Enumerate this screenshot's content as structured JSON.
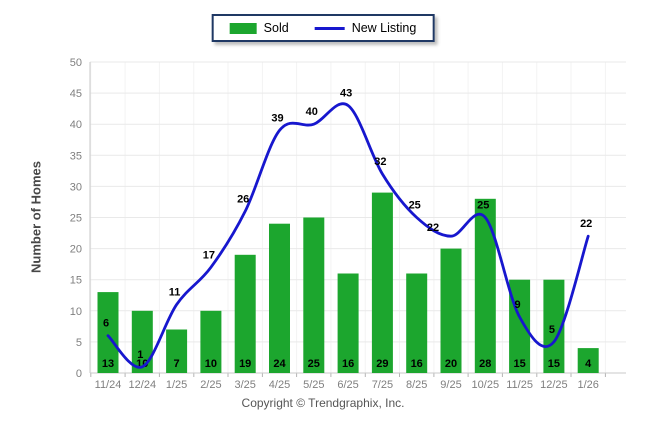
{
  "legend": {
    "sold_label": "Sold",
    "new_listing_label": "New Listing",
    "border_color": "#1F3864"
  },
  "footer": {
    "copyright": "Copyright © Trendgraphix, Inc."
  },
  "colors": {
    "bar": "#1CA62E",
    "line": "#1717CE",
    "gridline": "#E9E9E9",
    "gridline_vertical": "#F3F3F3",
    "axis_line": "#C9C9C9",
    "tick_mark": "#B5B5B5",
    "tick_text": "#7F7F7F",
    "data_label": "#000000"
  },
  "chart_data": {
    "type": "bar",
    "subtype": "bar+line combo",
    "title": "",
    "xlabel": "",
    "ylabel": "Number of Homes",
    "ylim": [
      0,
      50
    ],
    "ytick_step": 5,
    "grid": true,
    "legend_position": "top-center",
    "categories": [
      "11/24",
      "12/24",
      "1/25",
      "2/25",
      "3/25",
      "4/25",
      "5/25",
      "6/25",
      "7/25",
      "8/25",
      "9/25",
      "10/25",
      "11/25",
      "12/25",
      "1/26"
    ],
    "series": [
      {
        "name": "Sold",
        "type": "bar",
        "color": "#1CA62E",
        "values": [
          13,
          10,
          7,
          10,
          19,
          24,
          25,
          16,
          29,
          16,
          20,
          28,
          15,
          15,
          4
        ]
      },
      {
        "name": "New Listing",
        "type": "line",
        "color": "#1717CE",
        "values": [
          6,
          1,
          11,
          17,
          26,
          39,
          40,
          43,
          32,
          25,
          22,
          25,
          9,
          5,
          22
        ]
      }
    ]
  }
}
